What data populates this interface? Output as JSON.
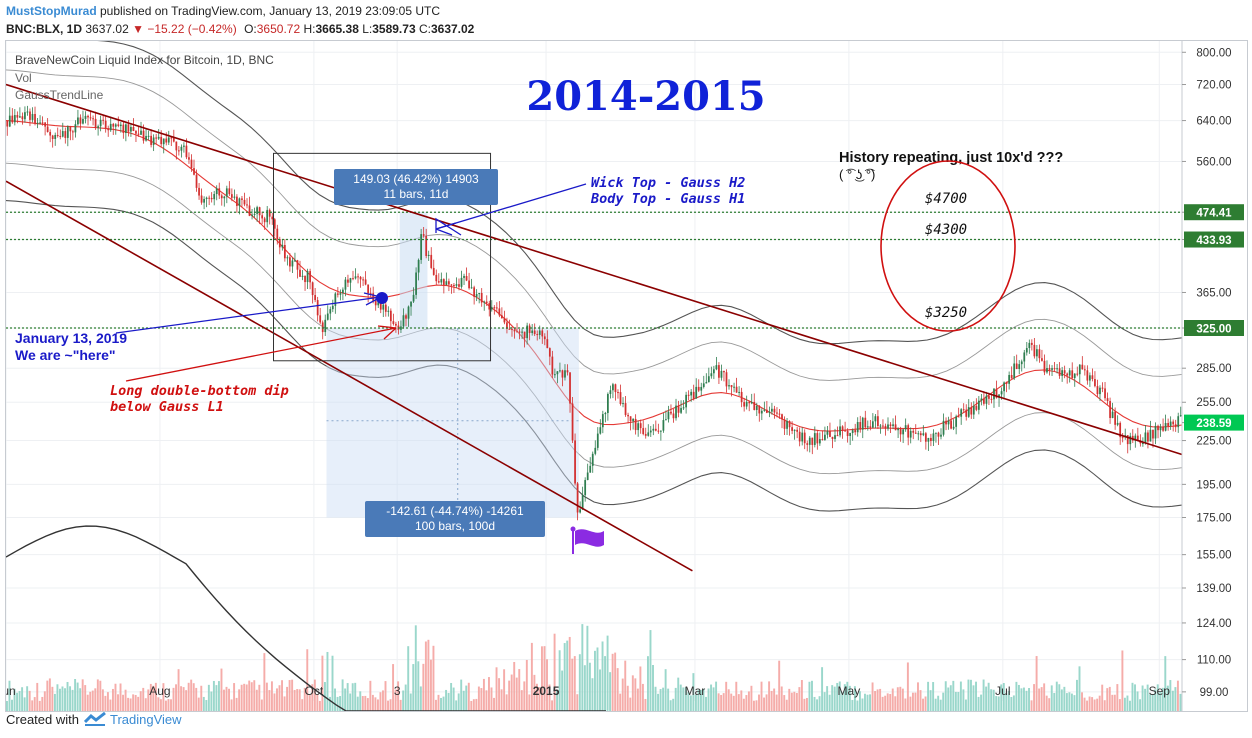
{
  "header": {
    "author": "MustStopMurad",
    "published": "published on TradingView.com, January 13, 2019 23:09:05 UTC",
    "symbol": "BNC:BLX, 1D",
    "last": "3637.02",
    "change": "−15.22 (−0.42%)",
    "o_label": "O:",
    "o": "3650.72",
    "h_label": "H:",
    "h": "3665.38",
    "l_label": "L:",
    "l": "3589.73",
    "c_label": "C:",
    "c": "3637.02"
  },
  "footer": {
    "created_with": "Created with",
    "brand": "TradingView"
  },
  "colors": {
    "up": "#2e7d4f",
    "down": "#d32f2f",
    "vol_up": "#8fd3c5",
    "vol_down": "#f4a3a0",
    "trendline": "#8b0000",
    "gauss_outer": "#555555",
    "gauss_inner": "#999999",
    "gauss_mid": "#e53935",
    "level": "#2e7d32",
    "annotation_blue": "#1a1ac8",
    "annotation_red": "#d01010",
    "title": "#1022d8",
    "measure": "#4a7ab8",
    "flag": "#8b2be2"
  },
  "chart_data": {
    "type": "candlestick",
    "title": "BraveNewCoin Liquid Index for Bitcoin, 1D, BNC",
    "indicators": [
      "Vol",
      "GaussTrendLine"
    ],
    "y_scale": "log",
    "ylim": [
      93,
      830
    ],
    "y_ticks": [
      800,
      720,
      640,
      560,
      474.41,
      433.93,
      365,
      325,
      285,
      255,
      238.59,
      225,
      195,
      175,
      155,
      139,
      124,
      110,
      99
    ],
    "y_tick_labels": [
      "800.00",
      "720.00",
      "640.00",
      "560.00",
      "474.41",
      "433.93",
      "365.00",
      "325.00",
      "285.00",
      "255.00",
      "238.59",
      "225.00",
      "195.00",
      "175.00",
      "155.00",
      "139.00",
      "124.00",
      "110.00",
      "99.00"
    ],
    "highlighted_levels": [
      {
        "value": 474.41,
        "label": "474.41"
      },
      {
        "value": 433.93,
        "label": "433.93"
      },
      {
        "value": 325,
        "label": "325.00"
      },
      {
        "value": 238.59,
        "label": "238.59",
        "current": true
      }
    ],
    "x_labels": [
      "Jun",
      "Aug",
      "Oct",
      "3",
      "2015",
      "Mar",
      "May",
      "Jul",
      "Sep"
    ],
    "x_label_dates": [
      "2014-06-01",
      "2014-08-01",
      "2014-10-01",
      "2014-11-03",
      "2015-01-01",
      "2015-03-01",
      "2015-05-01",
      "2015-07-01",
      "2015-09-01"
    ],
    "x_range": [
      "2014-06-01",
      "2015-09-10"
    ],
    "price_path": [
      [
        "2014-06-01",
        640
      ],
      [
        "2014-06-10",
        660
      ],
      [
        "2014-06-20",
        600
      ],
      [
        "2014-07-01",
        640
      ],
      [
        "2014-07-10",
        630
      ],
      [
        "2014-07-25",
        615
      ],
      [
        "2014-08-01",
        595
      ],
      [
        "2014-08-10",
        590
      ],
      [
        "2014-08-18",
        495
      ],
      [
        "2014-08-25",
        510
      ],
      [
        "2014-09-05",
        480
      ],
      [
        "2014-09-15",
        465
      ],
      [
        "2014-09-20",
        410
      ],
      [
        "2014-09-30",
        380
      ],
      [
        "2014-10-05",
        325
      ],
      [
        "2014-10-12",
        370
      ],
      [
        "2014-10-20",
        385
      ],
      [
        "2014-10-25",
        355
      ],
      [
        "2014-11-05",
        325
      ],
      [
        "2014-11-10",
        360
      ],
      [
        "2014-11-13",
        440
      ],
      [
        "2014-11-20",
        375
      ],
      [
        "2014-12-01",
        380
      ],
      [
        "2014-12-10",
        345
      ],
      [
        "2014-12-20",
        325
      ],
      [
        "2014-12-31",
        315
      ],
      [
        "2015-01-05",
        275
      ],
      [
        "2015-01-10",
        280
      ],
      [
        "2015-01-14",
        175
      ],
      [
        "2015-01-20",
        215
      ],
      [
        "2015-01-27",
        268
      ],
      [
        "2015-02-10",
        225
      ],
      [
        "2015-02-20",
        245
      ],
      [
        "2015-03-05",
        272
      ],
      [
        "2015-03-10",
        285
      ],
      [
        "2015-03-20",
        258
      ],
      [
        "2015-03-30",
        248
      ],
      [
        "2015-04-15",
        225
      ],
      [
        "2015-04-30",
        232
      ],
      [
        "2015-05-10",
        240
      ],
      [
        "2015-05-20",
        236
      ],
      [
        "2015-06-01",
        225
      ],
      [
        "2015-06-15",
        245
      ],
      [
        "2015-06-25",
        255
      ],
      [
        "2015-07-05",
        280
      ],
      [
        "2015-07-12",
        310
      ],
      [
        "2015-07-20",
        280
      ],
      [
        "2015-08-01",
        282
      ],
      [
        "2015-08-10",
        262
      ],
      [
        "2015-08-18",
        225
      ],
      [
        "2015-08-24",
        226
      ],
      [
        "2015-09-01",
        232
      ],
      [
        "2015-09-08",
        240
      ]
    ],
    "volume_max_label": "peak volume around 2015-01-14",
    "gauss_bands": {
      "upper_2": "H2",
      "upper_1": "H1",
      "middle": "M",
      "lower_1": "L1",
      "lower_2": "L2"
    },
    "trendlines": [
      {
        "name": "upper",
        "from": [
          "2014-06-01",
          720
        ],
        "to": [
          "2015-09-10",
          215
        ]
      },
      {
        "name": "lower",
        "from": [
          "2014-06-01",
          525
        ],
        "to": [
          "2015-02-28",
          147
        ]
      }
    ]
  },
  "annotations": {
    "big_title": "2014-2015",
    "history_line1": "History repeating, just 10x'd ???",
    "history_line2": "( ͡° ͜ʖ ͡°)",
    "price_4700": "$4700",
    "price_4300": "$4300",
    "price_3250": "$3250",
    "wick_line1": "Wick Top - Gauss H2",
    "wick_line2": "Body Top - Gauss H1",
    "jan_line1": "January 13, 2019",
    "jan_line2": "We are ~\"here\"",
    "dip_line1": "Long double-bottom dip",
    "dip_line2": "below Gauss L1",
    "measure_up_line1": "149.03 (46.42%) 14903",
    "measure_up_line2": "11 bars, 11d",
    "measure_down_line1": "-142.61 (-44.74%) -14261",
    "measure_down_line2": "100 bars, 100d"
  }
}
